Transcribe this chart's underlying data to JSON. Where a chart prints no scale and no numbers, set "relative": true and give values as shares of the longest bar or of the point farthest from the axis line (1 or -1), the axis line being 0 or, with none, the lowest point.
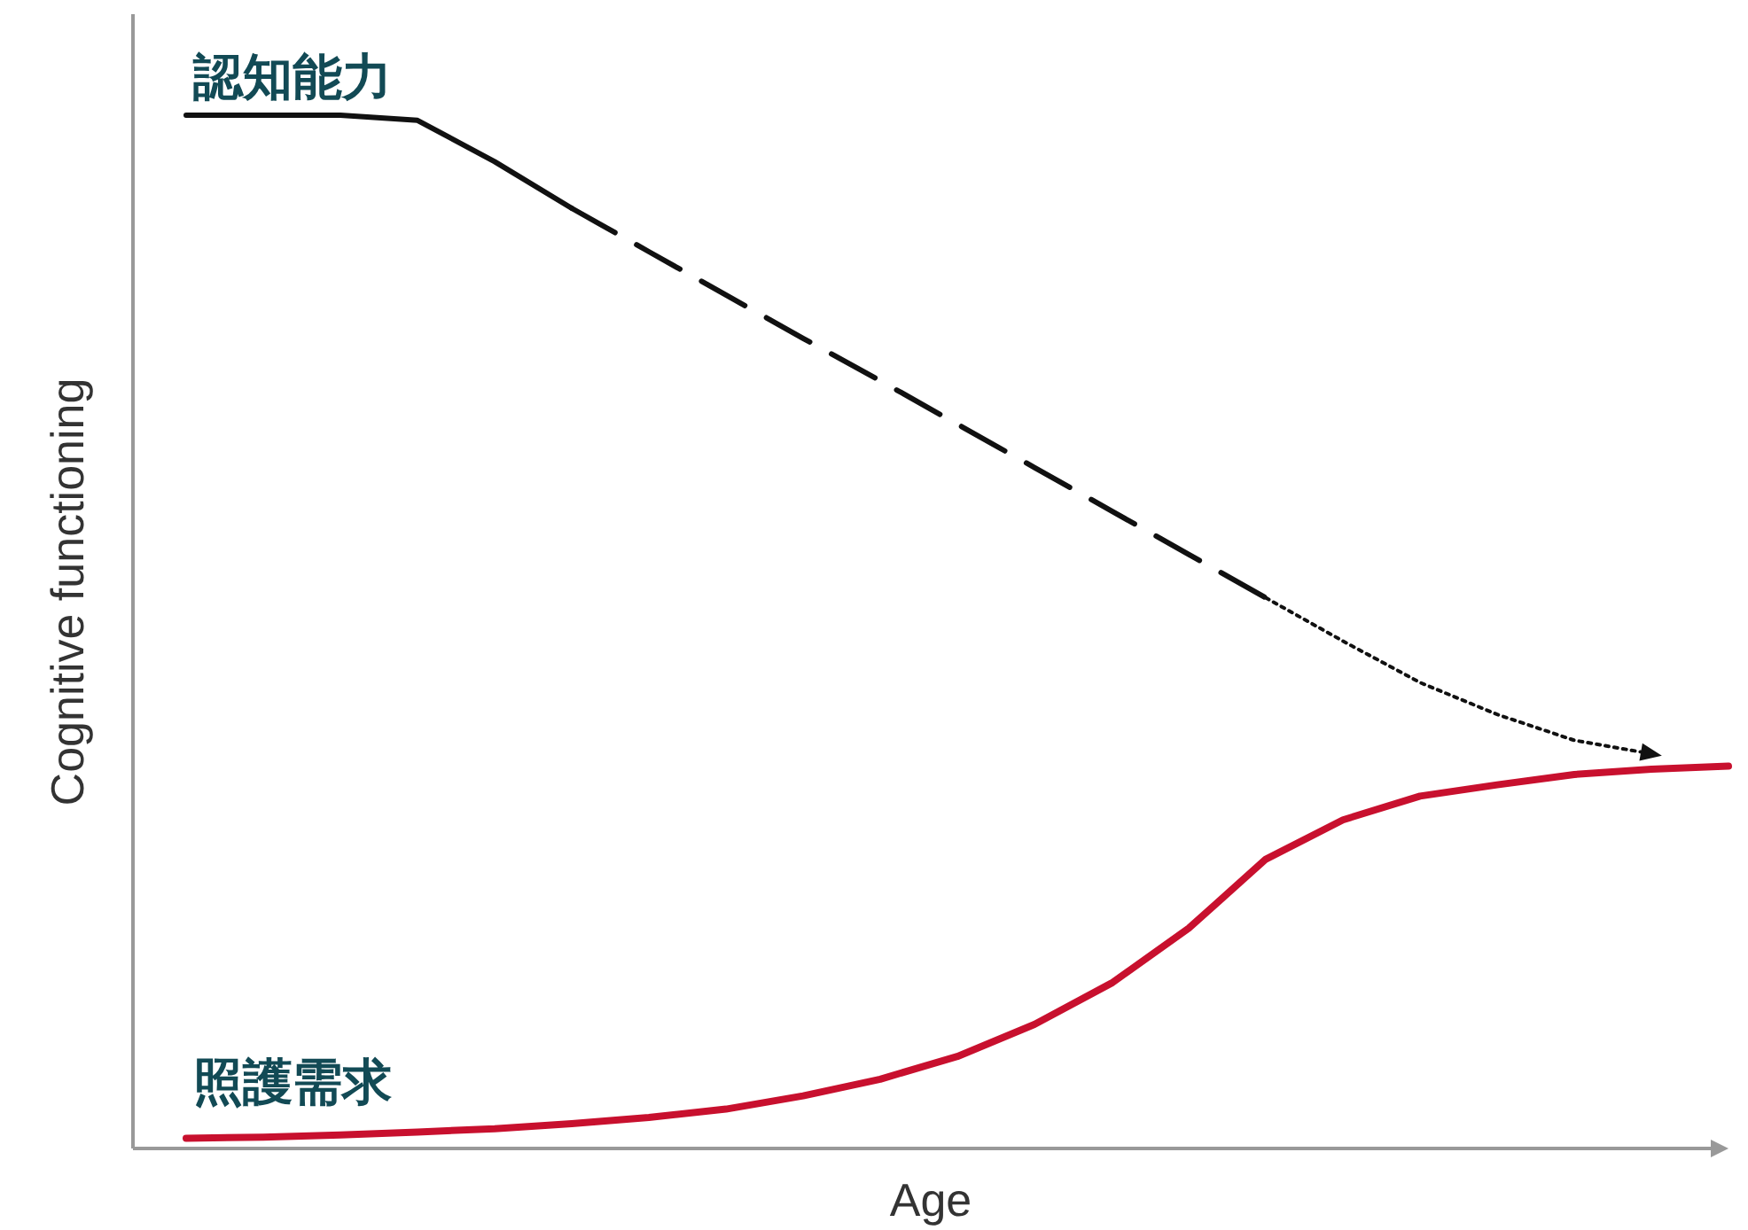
{
  "chart_data": {
    "type": "line",
    "relative": true,
    "xlabel": "Age",
    "ylabel": "Cognitive functioning",
    "categories": [
      null,
      null,
      null,
      null,
      null,
      null,
      null,
      null,
      null,
      null,
      null,
      null,
      null,
      null,
      null,
      null,
      null,
      null,
      null,
      null,
      null
    ],
    "series": [
      {
        "name": "認知能力",
        "color": "#111111",
        "line_style": "solid",
        "values": [
          1.0,
          1.0,
          1.0,
          0.995,
          0.955,
          0.91,
          null,
          null,
          null,
          null,
          null,
          null,
          null,
          null,
          null,
          null,
          null,
          null,
          null,
          null,
          null
        ]
      },
      {
        "color": "#111111",
        "line_style": "dashed",
        "values": [
          null,
          null,
          null,
          null,
          null,
          0.91,
          0.868,
          0.826,
          0.784,
          0.743,
          0.701,
          0.659,
          0.617,
          0.575,
          0.533,
          null,
          null,
          null,
          null,
          null,
          null
        ]
      },
      {
        "color": "#111111",
        "line_style": "dotted",
        "values": [
          null,
          null,
          null,
          null,
          null,
          null,
          null,
          null,
          null,
          null,
          null,
          null,
          null,
          null,
          0.533,
          0.491,
          0.451,
          0.42,
          0.395,
          0.382,
          null
        ]
      },
      {
        "name": "照護需求",
        "color": "#c8102e",
        "line_style": "solid",
        "values": [
          0.01,
          0.011,
          0.013,
          0.016,
          0.019,
          0.024,
          0.03,
          0.038,
          0.051,
          0.067,
          0.089,
          0.12,
          0.16,
          0.213,
          0.28,
          0.318,
          0.341,
          0.352,
          0.362,
          0.367,
          0.37
        ]
      }
    ]
  }
}
